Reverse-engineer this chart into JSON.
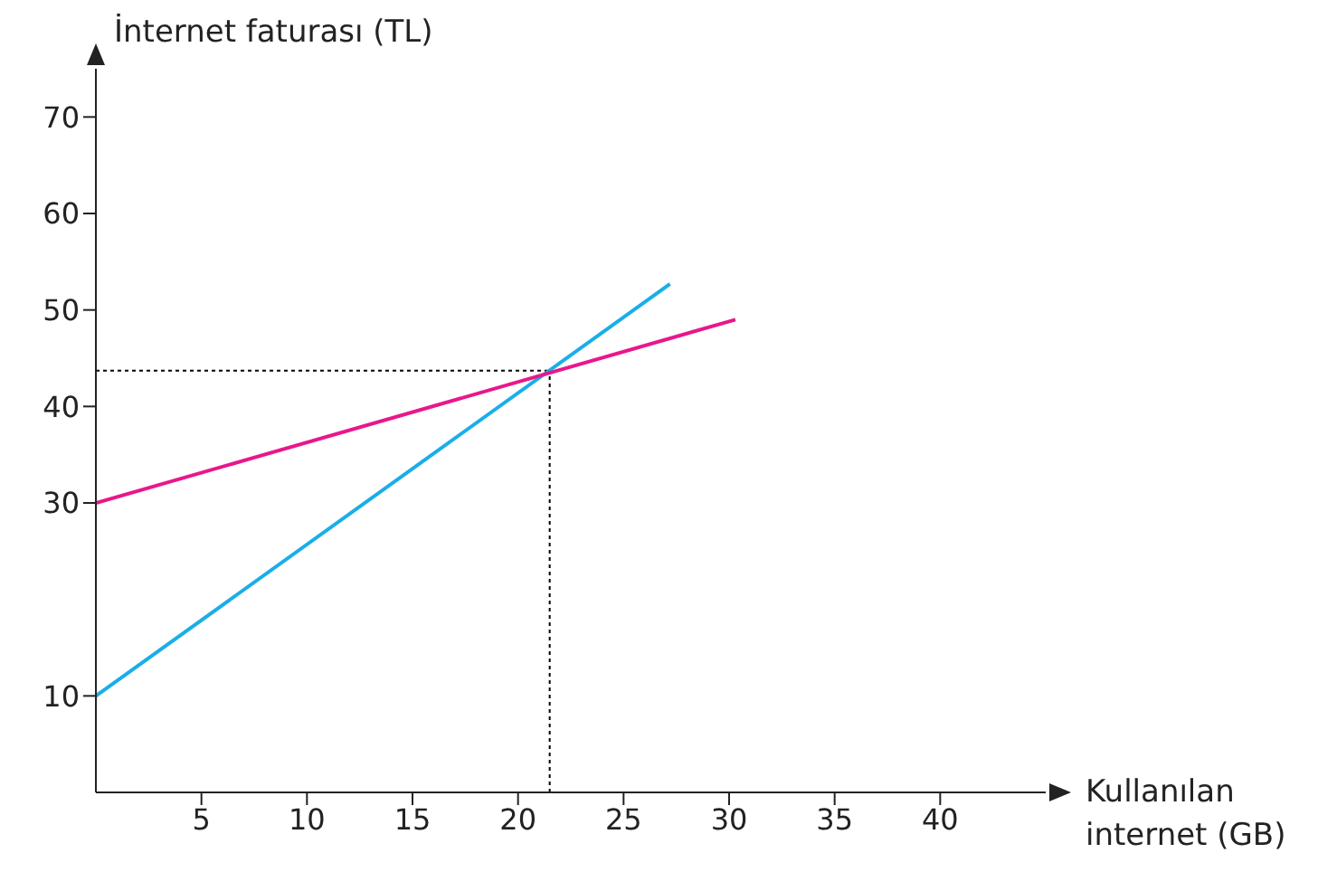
{
  "chart_data": {
    "type": "line",
    "xlabel": "Kullanılan internet (GB)",
    "ylabel": "İnternet faturası (TL)",
    "series": [
      {
        "color": "#1aaee8",
        "x": [
          0,
          27.2
        ],
        "values": [
          10,
          52.7
        ]
      },
      {
        "color": "#e8178c",
        "x": [
          0,
          30.3
        ],
        "values": [
          30,
          49
        ]
      }
    ],
    "xlim": [
      0,
      45
    ],
    "xticks": [
      5,
      10,
      15,
      20,
      25,
      30,
      35,
      40
    ],
    "ylim": [
      0,
      75
    ],
    "yticks": [
      10,
      30,
      40,
      50,
      60,
      70
    ],
    "ref_lines": [
      {
        "axis": "x",
        "value": 21.5,
        "line_style": "dotted",
        "color": "#000000"
      },
      {
        "axis": "y",
        "value": 43.7,
        "line_style": "dotted",
        "color": "#000000"
      }
    ],
    "grid": false,
    "marker": "none",
    "line_style": "solid"
  }
}
